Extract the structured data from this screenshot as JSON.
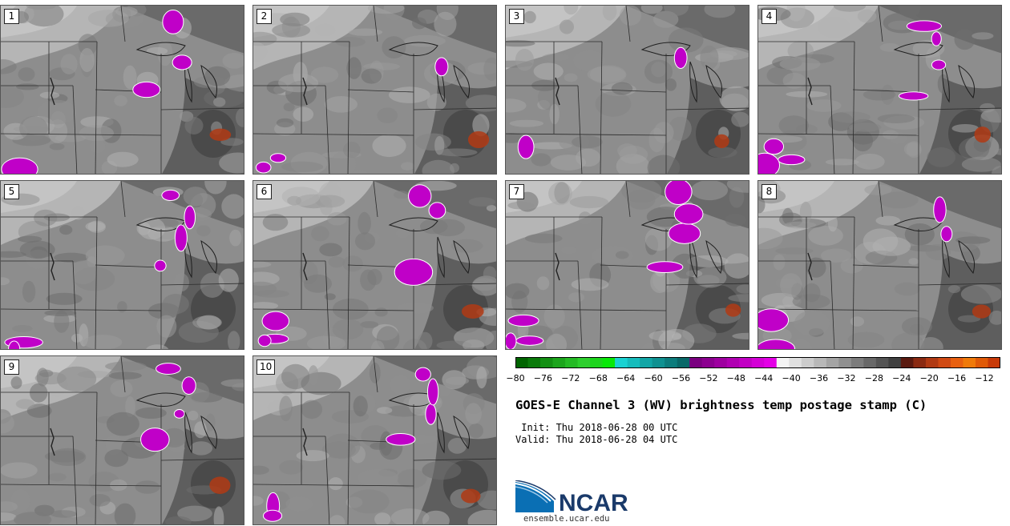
{
  "panels": [
    "1",
    "2",
    "3",
    "4",
    "5",
    "6",
    "7",
    "8",
    "9",
    "10"
  ],
  "colorbar": {
    "ticks": [
      "−80",
      "−76",
      "−72",
      "−68",
      "−64",
      "−60",
      "−56",
      "−52",
      "−48",
      "−44",
      "−40",
      "−36",
      "−32",
      "−28",
      "−24",
      "−20",
      "−16",
      "−12"
    ],
    "colors": [
      "#006400",
      "#0a7a0a",
      "#139013",
      "#1ca51c",
      "#25ba25",
      "#2ecf2e",
      "#1cd41c",
      "#08e808",
      "#1ad2d2",
      "#16bcbc",
      "#12a6a6",
      "#0f9191",
      "#0c7c7c",
      "#096868",
      "#7a0080",
      "#8c0090",
      "#9e00a0",
      "#b000b2",
      "#c200c4",
      "#d400d6",
      "#e400e6",
      "#f4f4f4",
      "#e0e0e0",
      "#cccccc",
      "#b8b8b8",
      "#a4a4a4",
      "#909090",
      "#7c7c7c",
      "#686868",
      "#545454",
      "#404040",
      "#5a1a10",
      "#8a2a12",
      "#b03a14",
      "#d04a14",
      "#e86010",
      "#f07a0a",
      "#e05a08",
      "#c83a08"
    ]
  },
  "title": "GOES-E Channel 3 (WV) brightness temp postage stamp (C)",
  "init": " Init: Thu 2018-06-28 00 UTC",
  "valid": "Valid: Thu 2018-06-28 04 UTC",
  "logo": {
    "text": "NCAR",
    "website": "ensemble.ucar.edu"
  },
  "colors": {
    "background": "#8f8f8f",
    "convection": "#c000c8",
    "warm": "#b03a14",
    "logo_blue": "#0a6fb4",
    "logo_navy": "#1a3a6a"
  }
}
